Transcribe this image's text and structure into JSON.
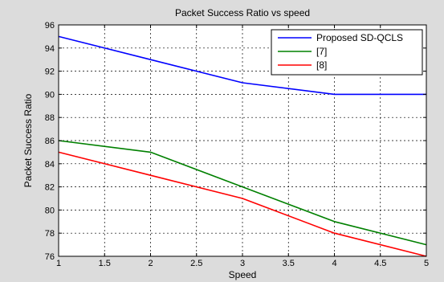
{
  "chart_data": {
    "type": "line",
    "title": "Packet Success Ratio vs speed",
    "xlabel": "Speed",
    "ylabel": "Packet Success Ratio",
    "xlim": [
      1,
      5
    ],
    "ylim": [
      76,
      96
    ],
    "xticks": [
      "1",
      "1.5",
      "2",
      "2.5",
      "3",
      "3.5",
      "4",
      "4.5",
      "5"
    ],
    "yticks": [
      "76",
      "78",
      "80",
      "82",
      "84",
      "86",
      "88",
      "90",
      "92",
      "94",
      "96"
    ],
    "grid": true,
    "legend_position": "top-right",
    "x": [
      1,
      2,
      3,
      4,
      5
    ],
    "series": [
      {
        "name": "Proposed SD-QCLS",
        "color": "#0000ff",
        "values": [
          95,
          93,
          91,
          90,
          90
        ]
      },
      {
        "name": "[7]",
        "color": "#008000",
        "values": [
          86,
          85,
          82,
          79,
          77
        ]
      },
      {
        "name": "[8]",
        "color": "#ff0000",
        "values": [
          85,
          83,
          81,
          78,
          76
        ]
      }
    ]
  }
}
